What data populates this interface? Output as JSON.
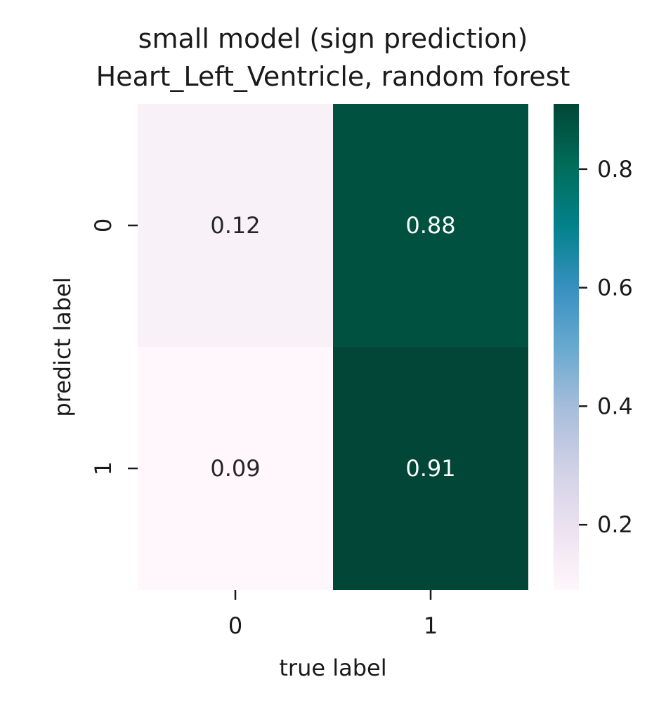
{
  "chart_data": {
    "type": "heatmap",
    "title": "small model (sign prediction)",
    "subtitle": "Heart_Left_Ventricle, random forest",
    "xlabel": "true label",
    "ylabel": "predict label",
    "x_categories": [
      "0",
      "1"
    ],
    "y_categories": [
      "0",
      "1"
    ],
    "values": [
      [
        0.12,
        0.88
      ],
      [
        0.09,
        0.91
      ]
    ],
    "value_labels": [
      [
        "0.12",
        "0.88"
      ],
      [
        "0.09",
        "0.91"
      ]
    ],
    "colormap": "PuBuGn",
    "color_range": [
      0.09,
      0.91
    ],
    "colorbar_ticks": [
      "0.2",
      "0.4",
      "0.6",
      "0.8"
    ],
    "colorbar_tick_values": [
      0.2,
      0.4,
      0.6,
      0.8
    ],
    "grid": false
  }
}
